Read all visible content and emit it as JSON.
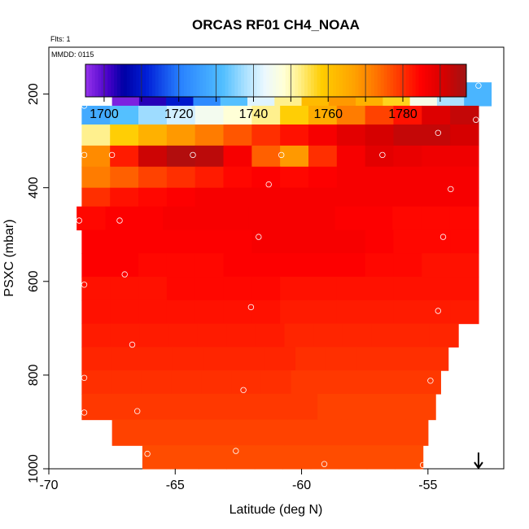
{
  "chart_data": {
    "type": "heatmap",
    "title": "ORCAS RF01 CH4_NOAA",
    "flights_label": "Flts: 1",
    "date_label": "MMDD: 0115",
    "xlabel": "Latitude (deg N)",
    "ylabel": "PSXC (mbar)",
    "xlim": [
      -70,
      -52
    ],
    "ylim": [
      1000,
      100
    ],
    "x_ticks": [
      "-70",
      "-65",
      "-60",
      "-55"
    ],
    "x_tick_values": [
      -70,
      -65,
      -60,
      -55
    ],
    "y_ticks": [
      "200",
      "400",
      "600",
      "800",
      "1000"
    ],
    "y_tick_values": [
      200,
      400,
      600,
      800,
      1000
    ],
    "colorbar": {
      "min": 1695,
      "max": 1797,
      "ticks": [
        "1700",
        "1720",
        "1740",
        "1760",
        "1780"
      ],
      "tick_values": [
        1700,
        1720,
        1740,
        1760,
        1780
      ]
    },
    "arrow_marker_latitude": -53,
    "layers": [
      {
        "p_top": 175,
        "p_bot": 225,
        "lat_min": -67.5,
        "lat_max": -52.5,
        "values": [
          1697,
          1703,
          1710,
          1722,
          1732,
          1742,
          1752,
          1762,
          1768,
          1764,
          1757,
          1746,
          1738,
          1730
        ]
      },
      {
        "p_top": 225,
        "p_bot": 265,
        "lat_min": -68.7,
        "lat_max": -53.0,
        "values": [
          1728,
          1732,
          1737,
          1741,
          1745,
          1748,
          1752,
          1758,
          1765,
          1772,
          1778,
          1783,
          1790,
          1793
        ]
      },
      {
        "p_top": 265,
        "p_bot": 310,
        "lat_min": -68.7,
        "lat_max": -53.0,
        "values": [
          1752,
          1758,
          1764,
          1768,
          1772,
          1776,
          1780,
          1783,
          1786,
          1789,
          1791,
          1793,
          1793,
          1791
        ]
      },
      {
        "p_top": 310,
        "p_bot": 355,
        "lat_min": -68.7,
        "lat_max": -53.0,
        "values": [
          1770,
          1782,
          1792,
          1795,
          1794,
          1786,
          1775,
          1768,
          1780,
          1786,
          1789,
          1788,
          1787,
          1787
        ]
      },
      {
        "p_top": 355,
        "p_bot": 400,
        "lat_min": -68.7,
        "lat_max": -53.0,
        "values": [
          1772,
          1775,
          1778,
          1780,
          1782,
          1784,
          1785,
          1784,
          1785,
          1786,
          1786,
          1786,
          1786,
          1786
        ]
      },
      {
        "p_top": 400,
        "p_bot": 440,
        "lat_min": -68.7,
        "lat_max": -53.0,
        "values": [
          1780,
          1783,
          1784,
          1785,
          1786,
          1786,
          1786,
          1786,
          1786,
          1786,
          1786,
          1786,
          1786,
          1786
        ]
      },
      {
        "p_top": 440,
        "p_bot": 490,
        "lat_min": -68.9,
        "lat_max": -53.0,
        "values": [
          1784,
          1785,
          1785,
          1786,
          1786,
          1786,
          1786,
          1786,
          1786,
          1785,
          1785,
          1784,
          1784,
          1784
        ]
      },
      {
        "p_top": 490,
        "p_bot": 540,
        "lat_min": -68.7,
        "lat_max": -53.0,
        "values": [
          1785,
          1785,
          1785,
          1785,
          1785,
          1785,
          1786,
          1786,
          1786,
          1786,
          1785,
          1784,
          1784,
          1784
        ]
      },
      {
        "p_top": 540,
        "p_bot": 590,
        "lat_min": -68.7,
        "lat_max": -53.0,
        "values": [
          1785,
          1785,
          1784,
          1784,
          1784,
          1785,
          1785,
          1785,
          1785,
          1785,
          1784,
          1784,
          1783,
          1783
        ]
      },
      {
        "p_top": 590,
        "p_bot": 640,
        "lat_min": -68.7,
        "lat_max": -53.0,
        "values": [
          1783,
          1783,
          1783,
          1784,
          1784,
          1784,
          1784,
          1783,
          1783,
          1783,
          1783,
          1783,
          1783,
          1783
        ]
      },
      {
        "p_top": 640,
        "p_bot": 690,
        "lat_min": -68.7,
        "lat_max": -53.0,
        "values": [
          1783,
          1783,
          1783,
          1783,
          1783,
          1783,
          1783,
          1782,
          1782,
          1782,
          1782,
          1782,
          1782,
          1782
        ]
      },
      {
        "p_top": 690,
        "p_bot": 740,
        "lat_min": -68.7,
        "lat_max": -53.8,
        "values": [
          1782,
          1782,
          1782,
          1782,
          1782,
          1782,
          1782,
          1781,
          1781,
          1781,
          1781,
          1781,
          1781
        ]
      },
      {
        "p_top": 740,
        "p_bot": 790,
        "lat_min": -68.7,
        "lat_max": -54.2,
        "values": [
          1781,
          1781,
          1781,
          1781,
          1781,
          1781,
          1781,
          1780,
          1780,
          1780,
          1780,
          1780
        ]
      },
      {
        "p_top": 790,
        "p_bot": 840,
        "lat_min": -68.7,
        "lat_max": -54.5,
        "values": [
          1780,
          1780,
          1780,
          1780,
          1780,
          1780,
          1780,
          1779,
          1779,
          1779,
          1779,
          1779
        ]
      },
      {
        "p_top": 840,
        "p_bot": 895,
        "lat_min": -68.7,
        "lat_max": -54.7,
        "values": [
          1779,
          1779,
          1779,
          1779,
          1779,
          1779,
          1779,
          1779,
          1778,
          1778,
          1778,
          1778
        ]
      },
      {
        "p_top": 895,
        "p_bot": 950,
        "lat_min": -67.5,
        "lat_max": -55.0,
        "values": [
          1778,
          1778,
          1778,
          1778,
          1778,
          1778,
          1778,
          1778,
          1778,
          1778,
          1778
        ]
      },
      {
        "p_top": 950,
        "p_bot": 1000,
        "lat_min": -66.3,
        "lat_max": -55.2,
        "values": [
          1777,
          1777,
          1777,
          1777,
          1777,
          1777,
          1777,
          1777,
          1777,
          1777
        ]
      }
    ],
    "sample_points": [
      {
        "lat": -67.4,
        "p": 180
      },
      {
        "lat": -58.1,
        "p": 180
      },
      {
        "lat": -53.0,
        "p": 182
      },
      {
        "lat": -68.6,
        "p": 225
      },
      {
        "lat": -53.1,
        "p": 255
      },
      {
        "lat": -54.6,
        "p": 283
      },
      {
        "lat": -68.6,
        "p": 330
      },
      {
        "lat": -67.5,
        "p": 330
      },
      {
        "lat": -64.3,
        "p": 330
      },
      {
        "lat": -60.8,
        "p": 330
      },
      {
        "lat": -56.8,
        "p": 330
      },
      {
        "lat": -61.3,
        "p": 393
      },
      {
        "lat": -54.1,
        "p": 403
      },
      {
        "lat": -68.8,
        "p": 470
      },
      {
        "lat": -67.2,
        "p": 470
      },
      {
        "lat": -61.7,
        "p": 505
      },
      {
        "lat": -54.4,
        "p": 505
      },
      {
        "lat": -67.0,
        "p": 585
      },
      {
        "lat": -68.6,
        "p": 607
      },
      {
        "lat": -62.0,
        "p": 655
      },
      {
        "lat": -54.6,
        "p": 663
      },
      {
        "lat": -53.1,
        "p": 700
      },
      {
        "lat": -66.7,
        "p": 735
      },
      {
        "lat": -68.6,
        "p": 806
      },
      {
        "lat": -54.9,
        "p": 812
      },
      {
        "lat": -62.3,
        "p": 832
      },
      {
        "lat": -68.6,
        "p": 880
      },
      {
        "lat": -66.5,
        "p": 877
      },
      {
        "lat": -66.1,
        "p": 968
      },
      {
        "lat": -62.6,
        "p": 962
      },
      {
        "lat": -59.1,
        "p": 990
      },
      {
        "lat": -55.2,
        "p": 992
      }
    ]
  }
}
